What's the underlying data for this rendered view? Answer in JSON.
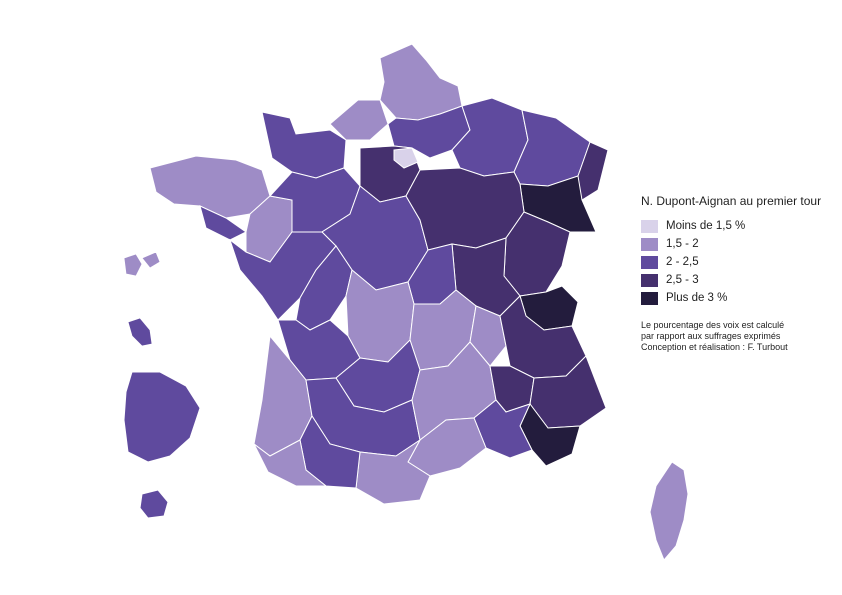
{
  "legend": {
    "title": "N. Dupont-Aignan au premier tour",
    "items": [
      {
        "label": "Moins de 1,5 %",
        "color": "#d9d2ea"
      },
      {
        "label": "1,5 - 2",
        "color": "#9e8cc6"
      },
      {
        "label": "2 - 2,5",
        "color": "#5f4a9e"
      },
      {
        "label": "2,5 - 3",
        "color": "#45306e"
      },
      {
        "label": "Plus de 3 %",
        "color": "#231c3d"
      }
    ]
  },
  "notes": {
    "line1": "Le pourcentage des voix est calculé",
    "line2": "par rapport aux suffrages exprimés",
    "line3": "Conception et réalisation : F. Turbout"
  },
  "colors": {
    "lt15": "#d9d2ea",
    "c15_2": "#9e8cc6",
    "c2_25": "#5f4a9e",
    "c25_3": "#45306e",
    "gt3": "#231c3d",
    "border": "#ffffff"
  }
}
